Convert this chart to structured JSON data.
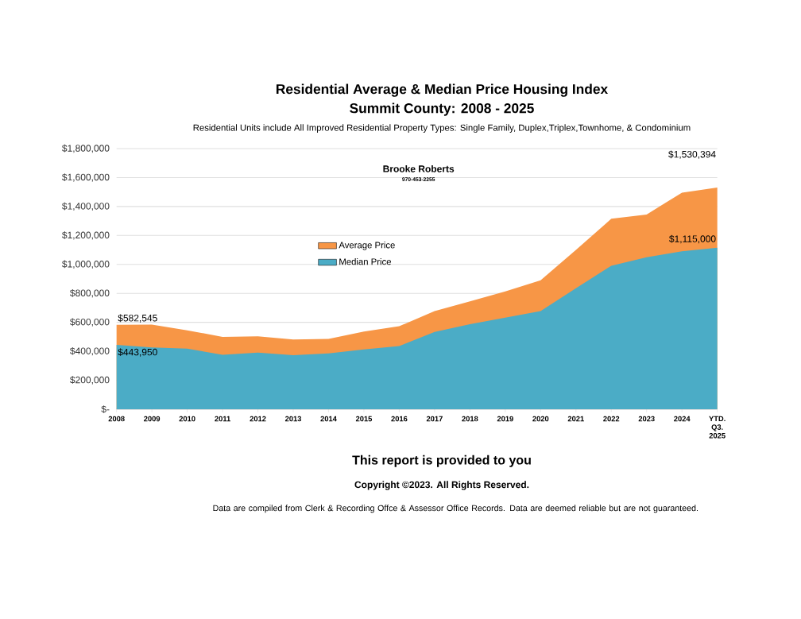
{
  "chart_data": {
    "type": "area",
    "title": "Residential Average & Median Price Housing Index",
    "subtitle": "Summit County: 2008 -  2025",
    "categories": [
      "2008",
      "2009",
      "2010",
      "2011",
      "2012",
      "2013",
      "2014",
      "2015",
      "2016",
      "2017",
      "2018",
      "2019",
      "2020",
      "2021",
      "2022",
      "2023",
      "2024",
      "YTD. Q3. 2025"
    ],
    "series": [
      {
        "name": "Average Price",
        "color": "#f79646",
        "values": [
          582545,
          585000,
          545000,
          500000,
          504000,
          482000,
          485000,
          536000,
          573000,
          678000,
          745000,
          813000,
          891000,
          1100000,
          1315000,
          1345000,
          1496000,
          1530394
        ],
        "value_labels": [
          "$582,545",
          null,
          null,
          null,
          null,
          null,
          null,
          null,
          null,
          null,
          null,
          null,
          null,
          null,
          null,
          null,
          null,
          "$1,530,394"
        ]
      },
      {
        "name": "Median Price",
        "color": "#4bacc6",
        "values": [
          443950,
          427000,
          418000,
          376000,
          391000,
          373000,
          385000,
          413000,
          436000,
          533000,
          587000,
          633000,
          678000,
          836000,
          991000,
          1049000,
          1091000,
          1115000
        ],
        "value_labels": [
          "$443,950",
          null,
          null,
          null,
          null,
          null,
          null,
          null,
          null,
          null,
          null,
          null,
          null,
          null,
          null,
          null,
          null,
          "$1,115,000"
        ]
      }
    ],
    "ylim": [
      0,
      1800000
    ],
    "yticks": [
      {
        "value": 0,
        "label": "$-"
      },
      {
        "value": 200000,
        "label": "$200,000"
      },
      {
        "value": 400000,
        "label": "$400,000"
      },
      {
        "value": 600000,
        "label": "$600,000"
      },
      {
        "value": 800000,
        "label": "$800,000"
      },
      {
        "value": 1000000,
        "label": "$1,000,000"
      },
      {
        "value": 1200000,
        "label": "$1,200,000"
      },
      {
        "value": 1400000,
        "label": "$1,400,000"
      },
      {
        "value": 1600000,
        "label": "$1,600,000"
      },
      {
        "value": 1800000,
        "label": "$1,800,000"
      }
    ],
    "grid": "y",
    "legend": "top",
    "annotations": [
      "Residential Units include All Improved Residential Property Types: Single Family, Duplex,Triplex,Townhome, & Condominium",
      "Brooke Roberts",
      "970-453-2255",
      "This report is provided to you",
      "Copyright ©2023.  All Rights Reserved.",
      "Data are compiled from Clerk & Recording Offce & Assessor Office Records.  Data are deemed reliable but are not guaranteed."
    ]
  }
}
